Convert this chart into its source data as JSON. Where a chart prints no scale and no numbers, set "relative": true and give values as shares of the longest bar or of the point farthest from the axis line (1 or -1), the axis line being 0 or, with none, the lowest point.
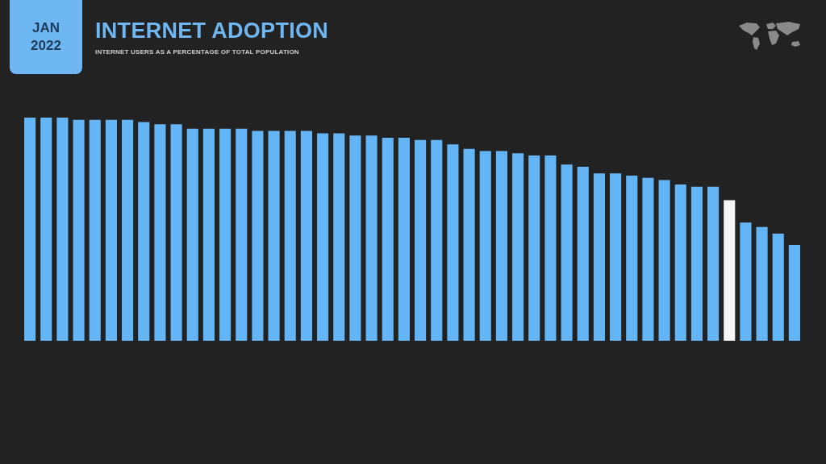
{
  "chart_data": {
    "type": "bar",
    "title": "INTERNET ADOPTION",
    "subtitle": "INTERNET USERS AS A PERCENTAGE OF TOTAL POPULATION",
    "annotations": [
      "JAN 2022"
    ],
    "categories": [
      null,
      null,
      null,
      null,
      null,
      null,
      null,
      null,
      null,
      null,
      null,
      null,
      null,
      null,
      null,
      null,
      null,
      null,
      null,
      null,
      null,
      null,
      null,
      null,
      null,
      null,
      null,
      null,
      null,
      null,
      null,
      null,
      null,
      null,
      null,
      null,
      null,
      null,
      null,
      null,
      null,
      null,
      null,
      null,
      null,
      null,
      null,
      null
    ],
    "values": [
      1.0,
      1.0,
      1.0,
      0.99,
      0.99,
      0.99,
      0.99,
      0.98,
      0.97,
      0.97,
      0.95,
      0.95,
      0.95,
      0.95,
      0.94,
      0.94,
      0.94,
      0.94,
      0.93,
      0.93,
      0.92,
      0.92,
      0.91,
      0.91,
      0.9,
      0.9,
      0.88,
      0.86,
      0.85,
      0.85,
      0.84,
      0.83,
      0.83,
      0.79,
      0.78,
      0.75,
      0.75,
      0.74,
      0.73,
      0.72,
      0.7,
      0.69,
      0.69,
      0.63,
      0.53,
      0.51,
      0.48,
      0.43
    ],
    "colors": [
      "#64b5f6",
      "#64b5f6",
      "#64b5f6",
      "#64b5f6",
      "#64b5f6",
      "#64b5f6",
      "#64b5f6",
      "#64b5f6",
      "#64b5f6",
      "#64b5f6",
      "#64b5f6",
      "#64b5f6",
      "#64b5f6",
      "#64b5f6",
      "#64b5f6",
      "#64b5f6",
      "#64b5f6",
      "#64b5f6",
      "#64b5f6",
      "#64b5f6",
      "#64b5f6",
      "#64b5f6",
      "#64b5f6",
      "#64b5f6",
      "#64b5f6",
      "#64b5f6",
      "#64b5f6",
      "#64b5f6",
      "#64b5f6",
      "#64b5f6",
      "#64b5f6",
      "#64b5f6",
      "#64b5f6",
      "#64b5f6",
      "#64b5f6",
      "#64b5f6",
      "#64b5f6",
      "#64b5f6",
      "#64b5f6",
      "#64b5f6",
      "#64b5f6",
      "#64b5f6",
      "#64b5f6",
      "#f5f5f5",
      "#64b5f6",
      "#64b5f6",
      "#64b5f6",
      "#64b5f6"
    ],
    "relative": true
  }
}
